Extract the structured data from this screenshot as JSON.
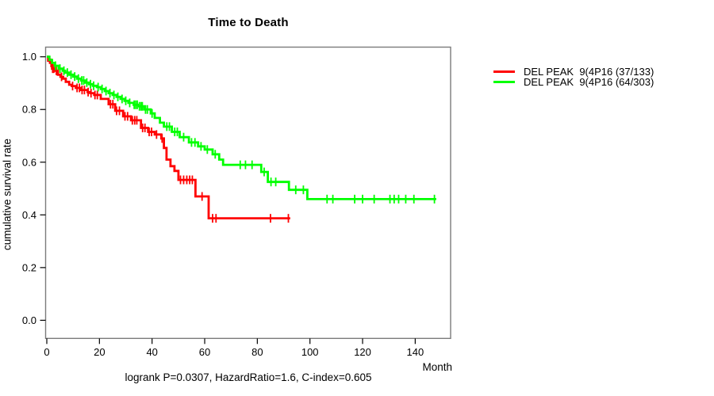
{
  "chart_data": {
    "type": "line",
    "subtype": "kaplan-meier-survival-step",
    "title": "Time to Death",
    "xlabel": "Month",
    "ylabel": "cumulative survival rate",
    "annotation": "logrank P=0.0307, HazardRatio=1.6, C-index=0.605",
    "xlim": [
      0,
      153
    ],
    "ylim": [
      0,
      1.04
    ],
    "x_ticks": [
      0,
      20,
      40,
      60,
      80,
      100,
      120,
      140
    ],
    "y_ticks": [
      0.0,
      0.2,
      0.4,
      0.6,
      0.8,
      1.0
    ],
    "grid": false,
    "legend_position": "right-outside",
    "series": [
      {
        "name": "DEL PEAK  9(4P16 (37/133)",
        "events_over_n": "37/133",
        "color": "#ff0000",
        "steps": [
          [
            0,
            1.0
          ],
          [
            0.5,
            0.985
          ],
          [
            1.2,
            0.977
          ],
          [
            2,
            0.955
          ],
          [
            3.2,
            0.947
          ],
          [
            4.2,
            0.932
          ],
          [
            5.2,
            0.924
          ],
          [
            6.2,
            0.917
          ],
          [
            7.2,
            0.905
          ],
          [
            8.5,
            0.894
          ],
          [
            9.5,
            0.889
          ],
          [
            11,
            0.882
          ],
          [
            13,
            0.874
          ],
          [
            15.5,
            0.866
          ],
          [
            16.5,
            0.862
          ],
          [
            18,
            0.855
          ],
          [
            20.5,
            0.84
          ],
          [
            23.5,
            0.82
          ],
          [
            26,
            0.795
          ],
          [
            29,
            0.774
          ],
          [
            32,
            0.759
          ],
          [
            35.8,
            0.73
          ],
          [
            38.5,
            0.715
          ],
          [
            41,
            0.705
          ],
          [
            43.5,
            0.69
          ],
          [
            44.5,
            0.654
          ],
          [
            45.5,
            0.61
          ],
          [
            47,
            0.585
          ],
          [
            48.5,
            0.567
          ],
          [
            50,
            0.533
          ],
          [
            56.5,
            0.47
          ],
          [
            61.5,
            0.387
          ]
        ],
        "end_month": 92.5,
        "censor_months": [
          1.6,
          2.2,
          2.7,
          3.6,
          5.6,
          9.8,
          11.5,
          12.4,
          13.4,
          14.3,
          15.7,
          16.8,
          18.3,
          19.2,
          24.2,
          25.1,
          26.5,
          27.6,
          29.7,
          30.7,
          32.5,
          33.4,
          34.2,
          36.4,
          37.3,
          38.9,
          39.8,
          41.7,
          43.8,
          50.8,
          52,
          53.2,
          54.3,
          55.3,
          59,
          63,
          64.3,
          85,
          91.8
        ]
      },
      {
        "name": "DEL PEAK  9(4P16 (64/303)",
        "events_over_n": "64/303",
        "color": "#00ff00",
        "steps": [
          [
            0,
            1.0
          ],
          [
            1,
            0.988
          ],
          [
            2,
            0.977
          ],
          [
            3,
            0.966
          ],
          [
            4.5,
            0.955
          ],
          [
            6,
            0.947
          ],
          [
            7,
            0.94
          ],
          [
            8.5,
            0.932
          ],
          [
            10,
            0.925
          ],
          [
            11.5,
            0.917
          ],
          [
            13,
            0.91
          ],
          [
            14.5,
            0.902
          ],
          [
            16,
            0.896
          ],
          [
            17.5,
            0.89
          ],
          [
            19,
            0.885
          ],
          [
            20.5,
            0.878
          ],
          [
            22,
            0.87
          ],
          [
            23.5,
            0.862
          ],
          [
            25,
            0.855
          ],
          [
            26.5,
            0.848
          ],
          [
            28,
            0.84
          ],
          [
            29.5,
            0.833
          ],
          [
            31,
            0.825
          ],
          [
            33,
            0.818
          ],
          [
            35,
            0.812
          ],
          [
            37,
            0.8
          ],
          [
            39.5,
            0.785
          ],
          [
            41,
            0.768
          ],
          [
            43,
            0.75
          ],
          [
            44.5,
            0.735
          ],
          [
            47.5,
            0.715
          ],
          [
            50.5,
            0.695
          ],
          [
            54,
            0.675
          ],
          [
            57.5,
            0.66
          ],
          [
            60,
            0.648
          ],
          [
            63,
            0.63
          ],
          [
            65.5,
            0.61
          ],
          [
            67,
            0.59
          ],
          [
            81.5,
            0.563
          ],
          [
            84,
            0.525
          ],
          [
            92,
            0.495
          ],
          [
            99,
            0.46
          ]
        ],
        "end_month": 148,
        "censor_months": [
          3.3,
          5,
          6.5,
          7.8,
          9.2,
          10.6,
          12,
          13.3,
          14,
          15.2,
          16.6,
          17.8,
          19.5,
          21,
          22.5,
          24,
          25.5,
          27,
          28.6,
          30,
          31.5,
          33.2,
          33.8,
          34.4,
          35.2,
          35.8,
          36.3,
          37.5,
          38.2,
          40,
          45.6,
          46.6,
          48.6,
          49.6,
          52,
          55,
          56.3,
          58.6,
          61,
          64,
          73.5,
          75.5,
          78,
          82.6,
          85.2,
          87,
          94.6,
          97.5,
          106.5,
          108.7,
          117,
          120,
          124.4,
          130.4,
          132,
          133.7,
          136.4,
          139.5,
          147.3
        ]
      }
    ]
  }
}
